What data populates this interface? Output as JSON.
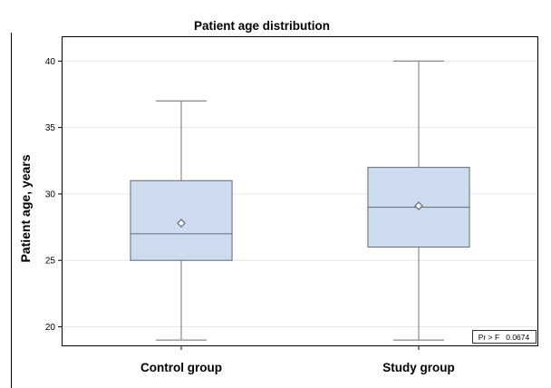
{
  "chart_data": {
    "type": "box",
    "title": "Patient age distribution",
    "xlabel": "",
    "ylabel": "Patient age, years",
    "ylim": [
      18.6,
      41.8
    ],
    "yticks": [
      20,
      25,
      30,
      35,
      40
    ],
    "grid": true,
    "categories": [
      "Control group",
      "Study group"
    ],
    "boxes": [
      {
        "category": "Control group",
        "min": 19,
        "q1": 25,
        "median": 27,
        "q3": 31,
        "max": 37,
        "mean": 27.8
      },
      {
        "category": "Study group",
        "min": 19,
        "q1": 26,
        "median": 29,
        "q3": 32,
        "max": 40,
        "mean": 29.1
      }
    ],
    "annotation": "Pr > F   0.0674",
    "colors": {
      "box_fill": "#ccdcee",
      "box_stroke": "#606a78",
      "whisker": "#8a8a8a",
      "grid": "#e6e6e6",
      "axis": "#000000"
    }
  }
}
